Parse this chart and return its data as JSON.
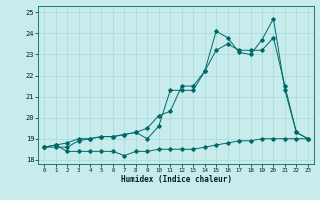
{
  "xlabel": "Humidex (Indice chaleur)",
  "bg_color": "#c8ecec",
  "grid_color": "#a8d8d8",
  "line_color": "#006868",
  "xlim": [
    -0.5,
    23.5
  ],
  "ylim": [
    17.8,
    25.3
  ],
  "xticks": [
    0,
    1,
    2,
    3,
    4,
    5,
    6,
    7,
    8,
    9,
    10,
    11,
    12,
    13,
    14,
    15,
    16,
    17,
    18,
    19,
    20,
    21,
    22,
    23
  ],
  "yticks": [
    18,
    19,
    20,
    21,
    22,
    23,
    24,
    25
  ],
  "series1_x": [
    0,
    1,
    2,
    3,
    4,
    5,
    6,
    7,
    8,
    9,
    10,
    11,
    12,
    13,
    14,
    15,
    16,
    17,
    18,
    19,
    20,
    21,
    22,
    23
  ],
  "series1_y": [
    18.6,
    18.7,
    18.4,
    18.4,
    18.4,
    18.4,
    18.4,
    18.2,
    18.4,
    18.4,
    18.5,
    18.5,
    18.5,
    18.5,
    18.6,
    18.7,
    18.8,
    18.9,
    18.9,
    19.0,
    19.0,
    19.0,
    19.0,
    19.0
  ],
  "series2_x": [
    0,
    1,
    2,
    3,
    4,
    5,
    6,
    7,
    8,
    9,
    10,
    11,
    12,
    13,
    14,
    15,
    16,
    17,
    18,
    19,
    20,
    21,
    22,
    23
  ],
  "series2_y": [
    18.6,
    18.7,
    18.8,
    19.0,
    19.0,
    19.1,
    19.1,
    19.2,
    19.3,
    19.0,
    19.6,
    21.3,
    21.3,
    21.3,
    22.2,
    24.1,
    23.8,
    23.1,
    23.0,
    23.7,
    24.7,
    21.3,
    19.3,
    19.0
  ],
  "series3_x": [
    0,
    1,
    2,
    3,
    4,
    5,
    6,
    7,
    8,
    9,
    10,
    11,
    12,
    13,
    14,
    15,
    16,
    17,
    18,
    19,
    20,
    21,
    22,
    23
  ],
  "series3_y": [
    18.6,
    18.6,
    18.6,
    18.9,
    19.0,
    19.1,
    19.1,
    19.2,
    19.3,
    19.5,
    20.1,
    20.3,
    21.5,
    21.5,
    22.2,
    23.2,
    23.5,
    23.2,
    23.2,
    23.2,
    23.8,
    21.5,
    19.3,
    19.0
  ]
}
